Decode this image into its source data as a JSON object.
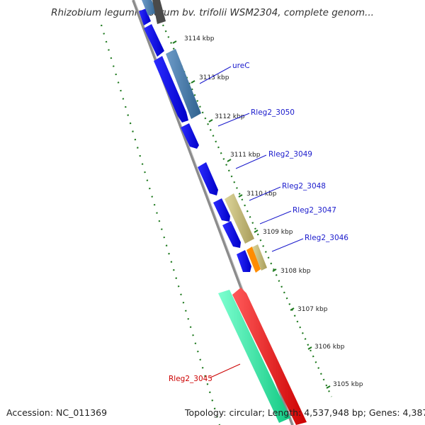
{
  "title": "Rhizobium leguminosarum bv. trifolii WSM2304, complete genom...",
  "footer": {
    "accession": "Accession: NC_011369",
    "topology": "Topology: circular; Length: 4,537,948 bp; Genes: 4,387"
  },
  "ticks": [
    "3114 kbp",
    "3113 kbp",
    "3112 kbp",
    "3111 kbp",
    "3110 kbp",
    "3109 kbp",
    "3108 kbp",
    "3107 kbp",
    "3106 kbp",
    "3105 kbp"
  ],
  "genes": [
    {
      "label": "ureC",
      "color": "#1a1acc"
    },
    {
      "label": "Rleg2_3050",
      "color": "#1a1acc"
    },
    {
      "label": "Rleg2_3049",
      "color": "#1a1acc"
    },
    {
      "label": "Rleg2_3048",
      "color": "#1a1acc"
    },
    {
      "label": "Rleg2_3047",
      "color": "#1a1acc"
    },
    {
      "label": "Rleg2_3046",
      "color": "#1a1acc"
    },
    {
      "label": "Rleg2_3045",
      "color": "#cc0000"
    }
  ],
  "colors": {
    "backbone": "#8c8c8c",
    "tick": "#1f7a1f",
    "forward": "#0a0aee",
    "steel": "#4a7fb0",
    "khaki": "#c8bf7a",
    "orange": "#ff8c00",
    "aqua": "#2ef2a8",
    "red": "#ff0000"
  }
}
